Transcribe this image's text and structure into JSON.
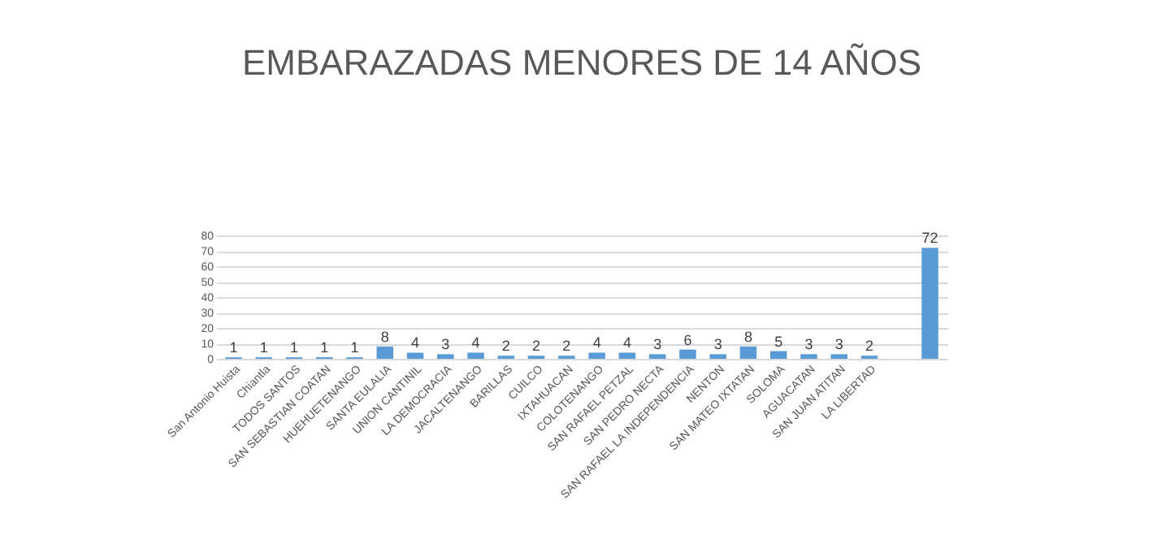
{
  "chart_data": {
    "type": "bar",
    "title": "EMBARAZADAS MENORES DE 14 AÑOS",
    "categories": [
      "San Antonio Huista",
      "Chiantla",
      "TODOS SANTOS",
      "SAN SEBASTIAN COATAN",
      "HUEHUETENANGO",
      "SANTA EULALIA",
      "UNION CANTINIL",
      "LA DEMOCRACIA",
      "JACALTENANGO",
      "BARILLAS",
      "CUILCO",
      "IXTAHUACAN",
      "COLOTENANGO",
      "SAN RAFAEL PETZAL",
      "SAN PEDRO NECTA",
      "SAN RAFAEL LA INDEPENDENCIA",
      "NENTON",
      "SAN MATEO IXTATAN",
      "SOLOMA",
      "AGUACATAN",
      "SAN JUAN ATITAN",
      "LA LIBERTAD",
      null,
      null
    ],
    "values": [
      1,
      1,
      1,
      1,
      1,
      8,
      4,
      3,
      4,
      2,
      2,
      2,
      4,
      4,
      3,
      6,
      3,
      8,
      5,
      3,
      3,
      2,
      null,
      72
    ],
    "color": "#5b9bd5",
    "ylim": [
      0,
      80
    ],
    "yticks": [
      0,
      10,
      20,
      30,
      40,
      50,
      60,
      70,
      80
    ],
    "grid": "y",
    "data_labels": true
  }
}
